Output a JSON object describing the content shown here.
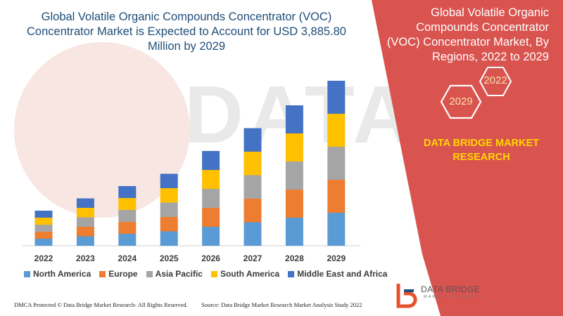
{
  "colors": {
    "panel": "#d9534f",
    "north_america": "#5b9bd5",
    "europe": "#ed7d31",
    "asia_pacific": "#a5a5a5",
    "south_america": "#ffc000",
    "middle_east_africa": "#4472c4"
  },
  "watermark": "DATA BRIDGE",
  "panel": {
    "title": "Global Volatile Organic Compounds Concentrator (VOC) Concentrator Market, By Regions, 2022 to 2029",
    "hex_2022": "2022",
    "hex_2029": "2029",
    "brand": "DATA BRIDGE MARKET RESEARCH"
  },
  "footer": {
    "left": "DMCA Protected © Data Bridge Market Research- All Rights Reserved.",
    "right": "Source: Data Bridge Market Research Market Analysis Study 2022"
  },
  "logo": {
    "name": "DATA BRIDGE",
    "tagline": "MARKET RESEARCH",
    "icon": "data-bridge-logo-icon"
  },
  "chart_data": {
    "type": "bar",
    "stacked": true,
    "title": "Global Volatile Organic Compounds Concentrator (VOC) Concentrator Market is Expected to Account for USD 3,885.80 Million by 2029",
    "xlabel": "",
    "ylabel": "",
    "categories": [
      "2022",
      "2023",
      "2024",
      "2025",
      "2026",
      "2027",
      "2028",
      "2029"
    ],
    "ylim": [
      0,
      240
    ],
    "grid": false,
    "legend_position": "bottom",
    "series": [
      {
        "name": "North America",
        "values": [
          10,
          13.5,
          17,
          20.5,
          27,
          33.5,
          40,
          47
        ]
      },
      {
        "name": "Europe",
        "values": [
          10,
          13.5,
          17,
          20.5,
          27,
          33.5,
          40,
          47
        ]
      },
      {
        "name": "Asia Pacific",
        "values": [
          10,
          13.5,
          17,
          20.5,
          27,
          33.5,
          40,
          47
        ]
      },
      {
        "name": "South America",
        "values": [
          10,
          13.5,
          17,
          20.5,
          27,
          33.5,
          40,
          47
        ]
      },
      {
        "name": "Middle East and Africa",
        "values": [
          10,
          13.5,
          17,
          20.5,
          27,
          33.5,
          40,
          47
        ]
      }
    ]
  }
}
